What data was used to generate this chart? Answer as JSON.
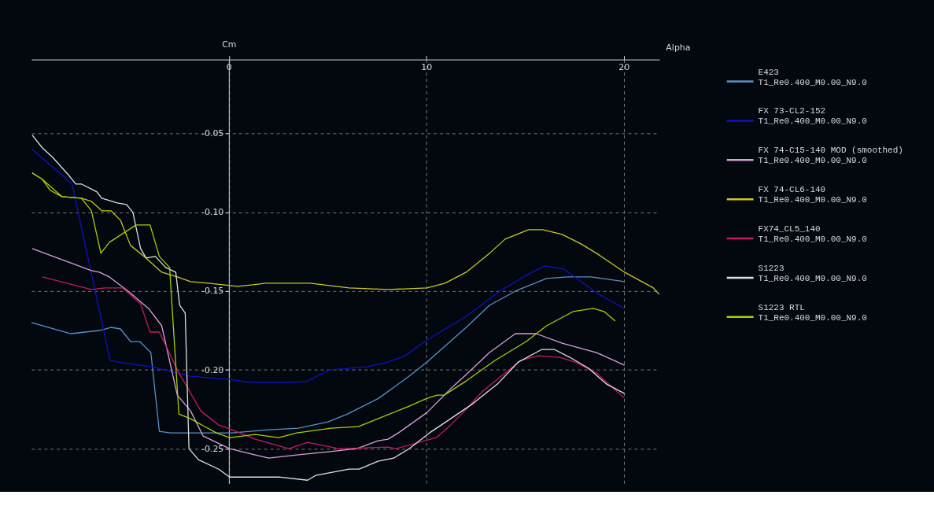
{
  "chart_data": {
    "type": "line",
    "xlabel": "Alpha",
    "ylabel": "Cm",
    "xlim": [
      -10,
      21.8
    ],
    "ylim": [
      -0.272,
      -0.003
    ],
    "xticks": [
      0,
      10,
      20
    ],
    "yticks": [
      {
        "value": -0.05,
        "label": "-0.05"
      },
      {
        "value": -0.1,
        "label": "-0.10"
      },
      {
        "value": -0.15,
        "label": "-0.15"
      },
      {
        "value": -0.2,
        "label": "-0.20"
      },
      {
        "value": -0.25,
        "label": "-0.25"
      }
    ],
    "grid": true,
    "legend": "right",
    "line_style": "solid",
    "series": [
      {
        "name": "E423\nT1_Re0.400_M0.00_N9.0",
        "color": "#5b8fc9",
        "x": [
          -10.0,
          -8.0,
          -6.56,
          -5.97,
          -5.49,
          -4.98,
          -4.51,
          -3.95,
          -3.52,
          -2.96,
          0.16,
          2.02,
          3.52,
          5.02,
          6.01,
          7.59,
          9.13,
          10.04,
          12.02,
          13.2,
          14.51,
          16.09,
          17.15,
          18.34,
          20.04
        ],
        "values": [
          -0.17,
          -0.177,
          -0.175,
          -0.173,
          -0.174,
          -0.182,
          -0.182,
          -0.189,
          -0.239,
          -0.24,
          -0.24,
          -0.238,
          -0.237,
          -0.233,
          -0.228,
          -0.218,
          -0.204,
          -0.195,
          -0.173,
          -0.159,
          -0.15,
          -0.142,
          -0.141,
          -0.141,
          -0.144
        ]
      },
      {
        "name": "FX 73-CL2-152\nT1_Re0.400_M0.00_N9.0",
        "color": "#1010c8",
        "x": [
          -9.96,
          -7.94,
          -6.01,
          -5.1,
          -3.91,
          -1.94,
          0.04,
          1.15,
          3.24,
          3.99,
          5.1,
          7.0,
          8.06,
          8.93,
          10.04,
          11.23,
          12.02,
          13.72,
          15.06,
          16.01,
          16.96,
          18.74,
          20.04
        ],
        "values": [
          -0.06,
          -0.082,
          -0.194,
          -0.196,
          -0.198,
          -0.204,
          -0.206,
          -0.208,
          -0.208,
          -0.207,
          -0.2,
          -0.198,
          -0.195,
          -0.191,
          -0.181,
          -0.172,
          -0.166,
          -0.15,
          -0.14,
          -0.134,
          -0.136,
          -0.152,
          -0.161
        ]
      },
      {
        "name": "FX 74-C15-140 MOD  (smoothed)\nT1_Re0.400_M0.00_N9.0",
        "color": "#d8a0d8",
        "x": [
          -9.96,
          -6.96,
          -6.56,
          -6.05,
          -5.1,
          -4.07,
          -3.52,
          -3.4,
          -2.61,
          -1.94,
          -1.3,
          0.04,
          1.34,
          2.02,
          3.44,
          5.02,
          6.48,
          7.55,
          8.06,
          8.58,
          10.04,
          11.23,
          12.02,
          13.2,
          14.51,
          15.57,
          16.88,
          18.62,
          20.04
        ],
        "values": [
          -0.123,
          -0.137,
          -0.138,
          -0.141,
          -0.15,
          -0.161,
          -0.17,
          -0.172,
          -0.216,
          -0.226,
          -0.242,
          -0.25,
          -0.254,
          -0.256,
          -0.254,
          -0.252,
          -0.25,
          -0.245,
          -0.244,
          -0.24,
          -0.227,
          -0.212,
          -0.203,
          -0.189,
          -0.177,
          -0.177,
          -0.183,
          -0.189,
          -0.197
        ]
      },
      {
        "name": "FX 74-CL6-140\nT1_Re0.400_M0.00_N9.0",
        "color": "#c8c81e",
        "x": [
          -9.96,
          -9.45,
          -9.05,
          -8.46,
          -7.47,
          -6.96,
          -6.44,
          -5.97,
          -5.49,
          -4.98,
          -4.19,
          -3.4,
          -2.61,
          -1.94,
          -1.03,
          0.43,
          1.23,
          1.86,
          4.11,
          6.09,
          8.06,
          10.04,
          10.95,
          12.02,
          13.2,
          13.99,
          15.18,
          15.89,
          16.88,
          17.83,
          18.62,
          20.04,
          21.5,
          21.8
        ],
        "values": [
          -0.075,
          -0.079,
          -0.086,
          -0.09,
          -0.091,
          -0.093,
          -0.099,
          -0.099,
          -0.105,
          -0.121,
          -0.129,
          -0.138,
          -0.141,
          -0.144,
          -0.145,
          -0.147,
          -0.146,
          -0.145,
          -0.145,
          -0.148,
          -0.149,
          -0.148,
          -0.145,
          -0.138,
          -0.126,
          -0.117,
          -0.111,
          -0.111,
          -0.114,
          -0.12,
          -0.126,
          -0.138,
          -0.148,
          -0.152
        ]
      },
      {
        "name": "FX74_CL5_140\nT1_Re0.400_M0.00_N9.0",
        "color": "#c81860",
        "x": [
          -9.45,
          -6.96,
          -6.28,
          -5.38,
          -4.47,
          -3.99,
          -3.52,
          -2.61,
          -1.42,
          -0.51,
          0.16,
          1.34,
          3.04,
          3.99,
          5.57,
          8.06,
          8.46,
          9.92,
          10.51,
          11.23,
          12.02,
          12.81,
          14.78,
          15.65,
          16.76,
          17.55,
          18.62,
          20.04
        ],
        "values": [
          -0.141,
          -0.149,
          -0.148,
          -0.148,
          -0.158,
          -0.176,
          -0.176,
          -0.2,
          -0.226,
          -0.235,
          -0.238,
          -0.244,
          -0.25,
          -0.246,
          -0.25,
          -0.249,
          -0.25,
          -0.245,
          -0.243,
          -0.235,
          -0.225,
          -0.214,
          -0.194,
          -0.191,
          -0.192,
          -0.195,
          -0.202,
          -0.218
        ]
      },
      {
        "name": "S1223\nT1_Re0.400_M0.00_N9.0",
        "color": "#e0e0e0",
        "x": [
          -9.96,
          -9.45,
          -8.93,
          -8.14,
          -7.75,
          -7.47,
          -6.68,
          -6.44,
          -5.65,
          -5.18,
          -4.86,
          -4.47,
          -4.19,
          -3.72,
          -3.2,
          -2.69,
          -2.49,
          -2.21,
          -2.02,
          -1.54,
          -0.51,
          0.04,
          2.53,
          3.99,
          4.39,
          6.09,
          6.6,
          7.55,
          8.34,
          9.13,
          10.16,
          11.23,
          12.29,
          13.6,
          14.66,
          15.85,
          16.48,
          17.27,
          18.22,
          19.13,
          20.04
        ],
        "values": [
          -0.051,
          -0.059,
          -0.065,
          -0.076,
          -0.082,
          -0.082,
          -0.087,
          -0.091,
          -0.094,
          -0.095,
          -0.1,
          -0.123,
          -0.129,
          -0.128,
          -0.135,
          -0.138,
          -0.159,
          -0.164,
          -0.25,
          -0.257,
          -0.263,
          -0.268,
          -0.268,
          -0.27,
          -0.267,
          -0.263,
          -0.263,
          -0.258,
          -0.256,
          -0.25,
          -0.24,
          -0.231,
          -0.222,
          -0.209,
          -0.195,
          -0.187,
          -0.187,
          -0.192,
          -0.199,
          -0.209,
          -0.215
        ]
      },
      {
        "name": "S1223 RTL\nT1_Re0.400_M0.00_N9.0",
        "color": "#a8d000",
        "x": [
          -9.96,
          -9.45,
          -8.46,
          -7.47,
          -6.96,
          -6.48,
          -6.05,
          -4.7,
          -3.99,
          -3.52,
          -3.0,
          -2.53,
          -1.94,
          -0.63,
          0.04,
          1.34,
          2.53,
          3.44,
          5.18,
          6.56,
          7.55,
          9.13,
          10.04,
          10.55,
          10.91,
          12.02,
          13.48,
          15.06,
          16.09,
          17.43,
          18.46,
          19.01,
          19.57
        ],
        "values": [
          -0.075,
          -0.079,
          -0.09,
          -0.091,
          -0.099,
          -0.126,
          -0.119,
          -0.108,
          -0.108,
          -0.128,
          -0.135,
          -0.228,
          -0.231,
          -0.24,
          -0.243,
          -0.241,
          -0.243,
          -0.24,
          -0.237,
          -0.236,
          -0.231,
          -0.223,
          -0.218,
          -0.216,
          -0.216,
          -0.207,
          -0.194,
          -0.182,
          -0.172,
          -0.163,
          -0.161,
          -0.163,
          -0.169
        ]
      }
    ]
  }
}
